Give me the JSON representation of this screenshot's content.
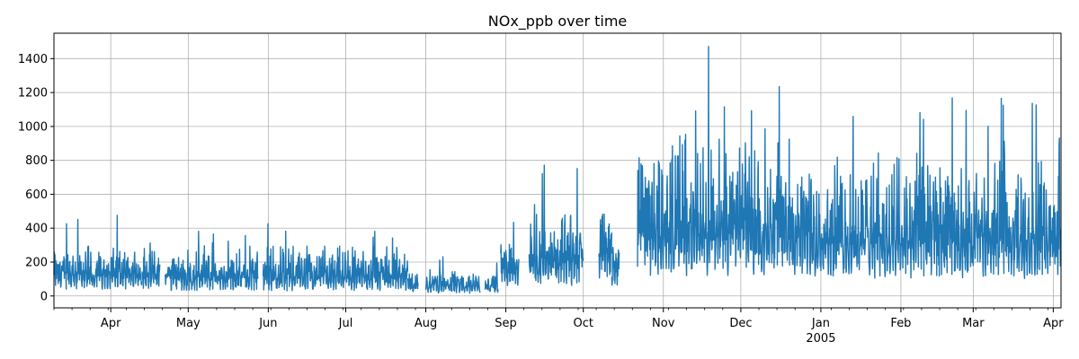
{
  "chart_data": {
    "type": "line",
    "title": "NOx_ppb over time",
    "xlabel": "",
    "ylabel": "",
    "x_range": [
      "2004-03-10",
      "2005-04-04"
    ],
    "ylim": [
      -70,
      1550
    ],
    "grid": true,
    "line_color": "#1f77b4",
    "y_ticks": [
      0,
      200,
      400,
      600,
      800,
      1000,
      1200,
      1400
    ],
    "x_ticks": [
      {
        "date": "2004-04-01",
        "label": "Apr"
      },
      {
        "date": "2004-05-01",
        "label": "May"
      },
      {
        "date": "2004-06-01",
        "label": "Jun"
      },
      {
        "date": "2004-07-01",
        "label": "Jul"
      },
      {
        "date": "2004-08-01",
        "label": "Aug"
      },
      {
        "date": "2004-09-01",
        "label": "Sep"
      },
      {
        "date": "2004-10-01",
        "label": "Oct"
      },
      {
        "date": "2004-11-01",
        "label": "Nov"
      },
      {
        "date": "2004-12-01",
        "label": "Dec"
      },
      {
        "date": "2005-01-01",
        "label": "Jan"
      },
      {
        "date": "2005-02-01",
        "label": "Feb"
      },
      {
        "date": "2005-03-01",
        "label": "Mar"
      },
      {
        "date": "2005-04-01",
        "label": "Apr"
      }
    ],
    "year_label": {
      "date": "2005-01-01",
      "label": "2005"
    },
    "segments": [
      {
        "start": "2004-03-10",
        "end": "2004-04-13",
        "base": 40,
        "amp": 220,
        "peak": 480
      },
      {
        "start": "2004-04-13",
        "end": "2004-04-20",
        "base": 40,
        "amp": 220,
        "peak": 330
      },
      {
        "start": "2004-04-22",
        "end": "2004-05-28",
        "base": 30,
        "amp": 210,
        "peak": 385
      },
      {
        "start": "2004-05-30",
        "end": "2004-07-25",
        "base": 30,
        "amp": 230,
        "peak": 440
      },
      {
        "start": "2004-07-25",
        "end": "2004-07-29",
        "base": 20,
        "amp": 120,
        "peak": 130
      },
      {
        "start": "2004-08-01",
        "end": "2004-08-22",
        "base": 15,
        "amp": 120,
        "peak": 240
      },
      {
        "start": "2004-08-24",
        "end": "2004-08-29",
        "base": 20,
        "amp": 110,
        "peak": 210
      },
      {
        "start": "2004-08-30",
        "end": "2004-09-06",
        "base": 60,
        "amp": 240,
        "peak": 490
      },
      {
        "start": "2004-09-10",
        "end": "2004-10-01",
        "base": 60,
        "amp": 400,
        "peak": 890
      },
      {
        "start": "2004-10-07",
        "end": "2004-10-12",
        "base": 100,
        "amp": 400,
        "peak": 680
      },
      {
        "start": "2004-10-12",
        "end": "2004-10-15",
        "base": 60,
        "amp": 300,
        "peak": 300
      },
      {
        "start": "2004-10-22",
        "end": "2004-12-21",
        "base": 120,
        "amp": 700,
        "peak": 1480
      },
      {
        "start": "2004-12-21",
        "end": "2005-04-04",
        "base": 100,
        "amp": 600,
        "peak": 1230
      }
    ]
  }
}
